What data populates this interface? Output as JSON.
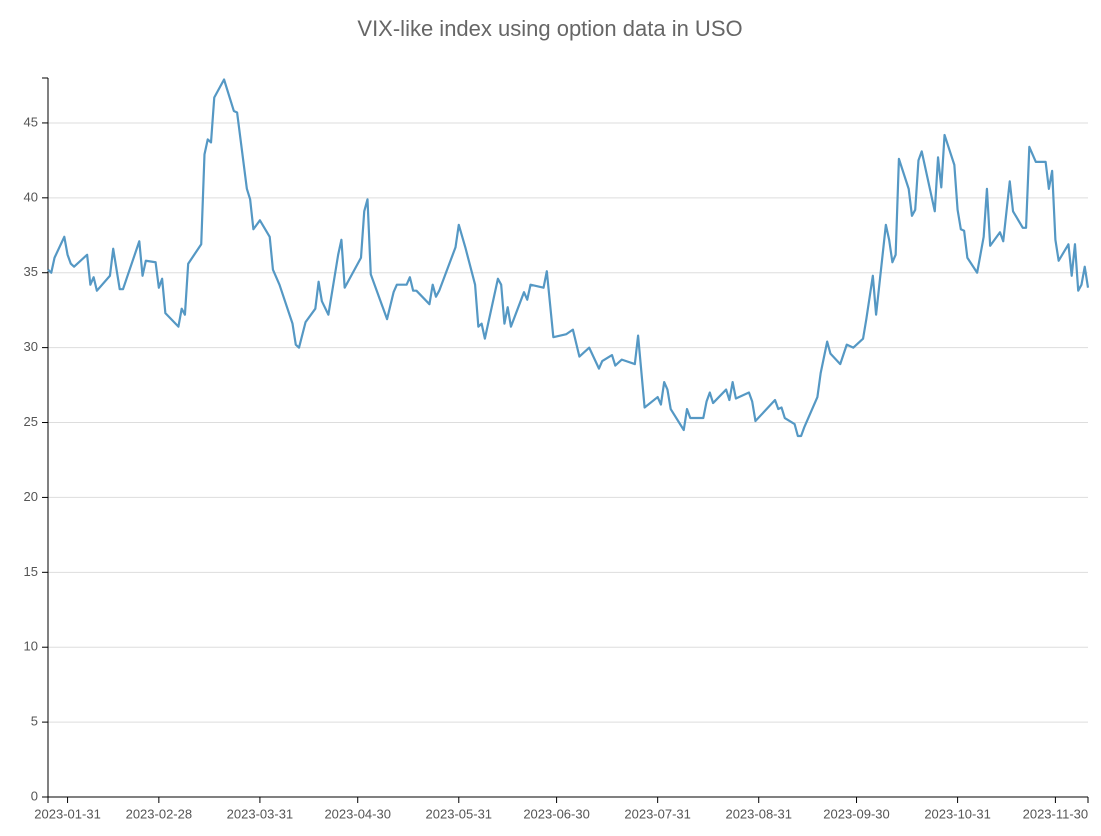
{
  "chart_data": {
    "type": "line",
    "title": "VIX-like index using option data in USO",
    "x": [
      "2023-01-25",
      "2023-01-26",
      "2023-01-27",
      "2023-01-30",
      "2023-01-31",
      "2023-02-01",
      "2023-02-02",
      "2023-02-06",
      "2023-02-07",
      "2023-02-08",
      "2023-02-09",
      "2023-02-13",
      "2023-02-14",
      "2023-02-16",
      "2023-02-17",
      "2023-02-22",
      "2023-02-23",
      "2023-02-24",
      "2023-02-27",
      "2023-02-28",
      "2023-03-01",
      "2023-03-02",
      "2023-03-06",
      "2023-03-07",
      "2023-03-08",
      "2023-03-09",
      "2023-03-13",
      "2023-03-14",
      "2023-03-15",
      "2023-03-16",
      "2023-03-17",
      "2023-03-20",
      "2023-03-23",
      "2023-03-24",
      "2023-03-27",
      "2023-03-28",
      "2023-03-29",
      "2023-03-31",
      "2023-04-03",
      "2023-04-04",
      "2023-04-06",
      "2023-04-10",
      "2023-04-11",
      "2023-04-12",
      "2023-04-14",
      "2023-04-17",
      "2023-04-18",
      "2023-04-19",
      "2023-04-21",
      "2023-04-24",
      "2023-04-25",
      "2023-04-26",
      "2023-04-28",
      "2023-05-01",
      "2023-05-02",
      "2023-05-03",
      "2023-05-04",
      "2023-05-09",
      "2023-05-11",
      "2023-05-12",
      "2023-05-15",
      "2023-05-16",
      "2023-05-17",
      "2023-05-18",
      "2023-05-22",
      "2023-05-23",
      "2023-05-24",
      "2023-05-25",
      "2023-05-30",
      "2023-05-31",
      "2023-06-02",
      "2023-06-05",
      "2023-06-06",
      "2023-06-07",
      "2023-06-08",
      "2023-06-12",
      "2023-06-13",
      "2023-06-14",
      "2023-06-15",
      "2023-06-16",
      "2023-06-20",
      "2023-06-21",
      "2023-06-22",
      "2023-06-26",
      "2023-06-27",
      "2023-06-29",
      "2023-07-03",
      "2023-07-05",
      "2023-07-07",
      "2023-07-10",
      "2023-07-13",
      "2023-07-14",
      "2023-07-17",
      "2023-07-18",
      "2023-07-20",
      "2023-07-24",
      "2023-07-25",
      "2023-07-27",
      "2023-07-31",
      "2023-08-01",
      "2023-08-02",
      "2023-08-03",
      "2023-08-04",
      "2023-08-08",
      "2023-08-09",
      "2023-08-10",
      "2023-08-14",
      "2023-08-15",
      "2023-08-16",
      "2023-08-17",
      "2023-08-21",
      "2023-08-22",
      "2023-08-23",
      "2023-08-24",
      "2023-08-28",
      "2023-08-29",
      "2023-08-30",
      "2023-09-05",
      "2023-09-06",
      "2023-09-07",
      "2023-09-08",
      "2023-09-11",
      "2023-09-12",
      "2023-09-13",
      "2023-09-14",
      "2023-09-18",
      "2023-09-19",
      "2023-09-21",
      "2023-09-22",
      "2023-09-25",
      "2023-09-27",
      "2023-09-29",
      "2023-10-02",
      "2023-10-03",
      "2023-10-05",
      "2023-10-06",
      "2023-10-09",
      "2023-10-10",
      "2023-10-11",
      "2023-10-12",
      "2023-10-13",
      "2023-10-16",
      "2023-10-17",
      "2023-10-18",
      "2023-10-19",
      "2023-10-20",
      "2023-10-24",
      "2023-10-25",
      "2023-10-26",
      "2023-10-27",
      "2023-10-30",
      "2023-10-31",
      "2023-11-01",
      "2023-11-02",
      "2023-11-03",
      "2023-11-06",
      "2023-11-08",
      "2023-11-09",
      "2023-11-10",
      "2023-11-13",
      "2023-11-14",
      "2023-11-16",
      "2023-11-17",
      "2023-11-20",
      "2023-11-21",
      "2023-11-22",
      "2023-11-24",
      "2023-11-27",
      "2023-11-28",
      "2023-11-29",
      "2023-11-30",
      "2023-12-01",
      "2023-12-04",
      "2023-12-05",
      "2023-12-06",
      "2023-12-07",
      "2023-12-08",
      "2023-12-09",
      "2023-12-10"
    ],
    "values": [
      35.2,
      35.0,
      36.0,
      37.4,
      36.2,
      35.6,
      35.4,
      36.2,
      34.2,
      34.7,
      33.8,
      34.8,
      36.6,
      33.9,
      33.9,
      37.1,
      34.8,
      35.8,
      35.7,
      34.0,
      34.6,
      32.3,
      31.4,
      32.6,
      32.2,
      35.6,
      36.9,
      42.9,
      43.9,
      43.7,
      46.7,
      47.9,
      45.8,
      45.7,
      40.6,
      39.9,
      37.9,
      38.5,
      37.4,
      35.2,
      34.2,
      31.6,
      30.2,
      30.0,
      31.7,
      32.6,
      34.4,
      33.1,
      32.2,
      36.2,
      37.2,
      34.0,
      34.8,
      36.0,
      39.1,
      39.9,
      34.9,
      31.9,
      33.7,
      34.2,
      34.2,
      34.7,
      33.8,
      33.8,
      32.9,
      34.2,
      33.4,
      33.8,
      36.7,
      38.2,
      36.7,
      34.2,
      31.4,
      31.6,
      30.6,
      34.6,
      34.2,
      31.6,
      32.7,
      31.4,
      33.7,
      33.2,
      34.2,
      34.0,
      35.1,
      30.7,
      30.9,
      31.2,
      29.4,
      30.0,
      28.6,
      29.1,
      29.5,
      28.8,
      29.2,
      28.9,
      30.8,
      26.0,
      26.7,
      26.2,
      27.7,
      27.2,
      25.9,
      24.5,
      25.9,
      25.3,
      25.3,
      26.4,
      27.0,
      26.3,
      27.2,
      26.5,
      27.7,
      26.6,
      27.0,
      26.4,
      25.1,
      26.5,
      25.9,
      26.0,
      25.3,
      24.9,
      24.1,
      24.1,
      24.7,
      26.7,
      28.3,
      30.4,
      29.6,
      28.9,
      30.2,
      30.0,
      30.6,
      31.9,
      34.8,
      32.2,
      38.2,
      37.2,
      35.7,
      36.2,
      42.6,
      40.6,
      38.8,
      39.2,
      42.5,
      43.1,
      39.1,
      42.7,
      40.7,
      44.2,
      42.2,
      39.2,
      37.9,
      37.8,
      36.0,
      35.0,
      37.4,
      40.6,
      36.8,
      37.7,
      37.1,
      41.1,
      39.1,
      38.0,
      38.0,
      43.4,
      42.4,
      42.4,
      40.6,
      41.8,
      37.2,
      35.8,
      36.9,
      34.8,
      36.9,
      33.8,
      34.2,
      35.4,
      34.0
    ],
    "color": "#5598c4",
    "xlim": [
      "2023-01-25",
      "2023-12-10"
    ],
    "xticks": [
      "2023-01-31",
      "2023-02-28",
      "2023-03-31",
      "2023-04-30",
      "2023-05-31",
      "2023-06-30",
      "2023-07-31",
      "2023-08-31",
      "2023-09-30",
      "2023-10-31",
      "2023-11-30"
    ],
    "ylim": [
      0,
      48
    ],
    "yticks": [
      0,
      5,
      10,
      15,
      20,
      25,
      30,
      35,
      40,
      45
    ],
    "grid": true
  }
}
